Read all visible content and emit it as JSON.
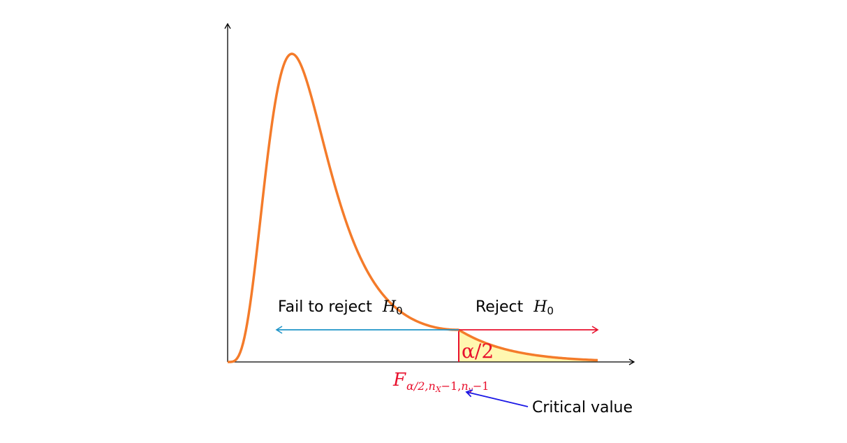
{
  "regions": {
    "fail_label": "Fail to reject",
    "reject_label": "Reject",
    "h0_symbol": "H",
    "h0_subscript": "0"
  },
  "tail": {
    "alpha_label": "α/2"
  },
  "critical": {
    "symbol": "F",
    "subscript_alpha": "α/2,",
    "subscript_nx": "n",
    "subscript_nx_sub": "X",
    "subscript_nx_rest": "−1,",
    "subscript_ny": "n",
    "subscript_ny_sub": "y",
    "subscript_ny_rest": "−1",
    "annotation": "Critical value"
  },
  "colors": {
    "curve": "#f47b2a",
    "fail_arrow": "#1f94c8",
    "reject_arrow": "#e8102d",
    "tail_fill": "#fff7b0",
    "critical_arrow": "#1a17e6",
    "axes": "#000000"
  }
}
